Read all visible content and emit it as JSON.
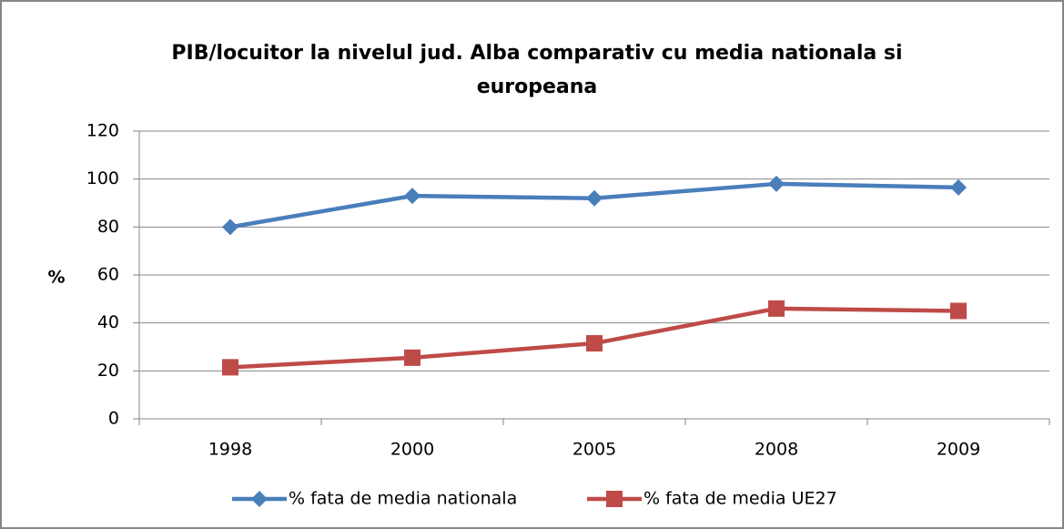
{
  "chart_data": {
    "type": "line",
    "title": "PIB/locuitor la nivelul jud. Alba comparativ cu media nationala si europeana",
    "ylabel": "%",
    "categories": [
      "1998",
      "2000",
      "2005",
      "2008",
      "2009"
    ],
    "series": [
      {
        "name": "% fata de media nationala",
        "color": "#4a7ebb",
        "marker": "diamond",
        "values": [
          80,
          93,
          92,
          98,
          96.5
        ]
      },
      {
        "name": "% fata de media UE27",
        "color": "#be4b48",
        "marker": "square",
        "values": [
          21.5,
          25.5,
          31.5,
          46,
          45
        ]
      }
    ],
    "ylim": [
      0,
      120
    ],
    "yticks": [
      0,
      20,
      40,
      60,
      80,
      100,
      120
    ],
    "grid": true,
    "legend": "bottom"
  }
}
